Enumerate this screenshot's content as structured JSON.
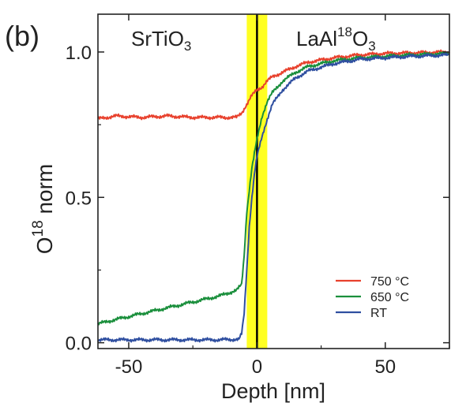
{
  "chart_data": {
    "type": "line",
    "panel_label": "(b)",
    "xlabel": "Depth [nm]",
    "ylabel_main": "O",
    "ylabel_sup": "18",
    "ylabel_rest": " norm",
    "xlim": [
      -62,
      75
    ],
    "ylim": [
      -0.02,
      1.13
    ],
    "xticks": [
      -50,
      0,
      50
    ],
    "xtick_labels": [
      "-50",
      "0",
      "50"
    ],
    "yticks": [
      0.0,
      0.5,
      1.0
    ],
    "ytick_labels": [
      "0.0",
      "0.5",
      "1.0"
    ],
    "regions": {
      "left_label": {
        "main": "SrTiO",
        "sub": "3"
      },
      "right_label": {
        "pre": "LaAl",
        "sup": "18",
        "main": "O",
        "sub": "3"
      },
      "interface_band": {
        "from": -4,
        "to": 4,
        "color": "#ffff22"
      },
      "interface_line": {
        "x": 0,
        "color": "#000000"
      }
    },
    "legend_position": "bottom-right",
    "series": [
      {
        "name": "750 °C",
        "color": "#e8412d",
        "points": [
          [
            -62,
            0.77
          ],
          [
            -55,
            0.78
          ],
          [
            -45,
            0.775
          ],
          [
            -35,
            0.78
          ],
          [
            -25,
            0.775
          ],
          [
            -15,
            0.775
          ],
          [
            -8,
            0.775
          ],
          [
            -6,
            0.79
          ],
          [
            -4,
            0.82
          ],
          [
            -2,
            0.85
          ],
          [
            0,
            0.87
          ],
          [
            2,
            0.88
          ],
          [
            4,
            0.9
          ],
          [
            6,
            0.915
          ],
          [
            10,
            0.93
          ],
          [
            15,
            0.95
          ],
          [
            20,
            0.965
          ],
          [
            30,
            0.98
          ],
          [
            40,
            0.99
          ],
          [
            50,
            0.995
          ],
          [
            60,
            0.997
          ],
          [
            75,
            1.0
          ]
        ]
      },
      {
        "name": "650 °C",
        "color": "#1a8f3c",
        "points": [
          [
            -62,
            0.065
          ],
          [
            -55,
            0.08
          ],
          [
            -45,
            0.1
          ],
          [
            -35,
            0.12
          ],
          [
            -25,
            0.14
          ],
          [
            -15,
            0.16
          ],
          [
            -8,
            0.18
          ],
          [
            -6,
            0.2
          ],
          [
            -5,
            0.3
          ],
          [
            -4,
            0.45
          ],
          [
            -2,
            0.6
          ],
          [
            0,
            0.7
          ],
          [
            2,
            0.78
          ],
          [
            4,
            0.83
          ],
          [
            6,
            0.86
          ],
          [
            10,
            0.9
          ],
          [
            15,
            0.93
          ],
          [
            20,
            0.95
          ],
          [
            30,
            0.97
          ],
          [
            40,
            0.98
          ],
          [
            50,
            0.985
          ],
          [
            60,
            0.99
          ],
          [
            75,
            0.995
          ]
        ]
      },
      {
        "name": "RT",
        "color": "#2f4fa0",
        "points": [
          [
            -62,
            0.01
          ],
          [
            -50,
            0.01
          ],
          [
            -30,
            0.01
          ],
          [
            -15,
            0.01
          ],
          [
            -7,
            0.012
          ],
          [
            -6,
            0.03
          ],
          [
            -5,
            0.1
          ],
          [
            -4,
            0.25
          ],
          [
            -3,
            0.4
          ],
          [
            -2,
            0.5
          ],
          [
            -1,
            0.58
          ],
          [
            0,
            0.64
          ],
          [
            2,
            0.71
          ],
          [
            4,
            0.77
          ],
          [
            6,
            0.82
          ],
          [
            10,
            0.87
          ],
          [
            15,
            0.91
          ],
          [
            20,
            0.935
          ],
          [
            30,
            0.96
          ],
          [
            40,
            0.975
          ],
          [
            50,
            0.98
          ],
          [
            60,
            0.985
          ],
          [
            75,
            0.99
          ]
        ]
      }
    ]
  }
}
